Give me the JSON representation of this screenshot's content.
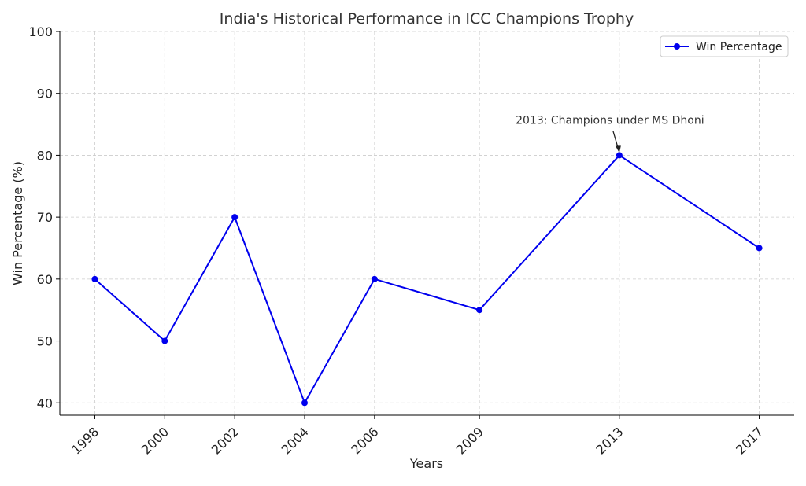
{
  "chart_data": {
    "type": "line",
    "title": "India's Historical Performance in ICC Champions Trophy",
    "xlabel": "Years",
    "ylabel": "Win Percentage (%)",
    "xlim": [
      1997,
      2018
    ],
    "ylim": [
      38,
      100
    ],
    "x_ticks": [
      "1998",
      "2000",
      "2002",
      "2004",
      "2006",
      "2009",
      "2013",
      "2017"
    ],
    "y_ticks": [
      "40",
      "50",
      "60",
      "70",
      "80",
      "90",
      "100"
    ],
    "grid": true,
    "legend_position": "top-right",
    "series": [
      {
        "name": "Win Percentage",
        "color": "#0000ee",
        "marker": "circle",
        "x": [
          1998,
          2000,
          2002,
          2004,
          2006,
          2009,
          2013,
          2017
        ],
        "y": [
          60,
          50,
          70,
          40,
          60,
          55,
          80,
          65
        ]
      }
    ],
    "annotations": [
      {
        "text": "2013: Champions under MS Dhoni",
        "x": 2013,
        "y": 80,
        "arrow": true
      }
    ]
  }
}
